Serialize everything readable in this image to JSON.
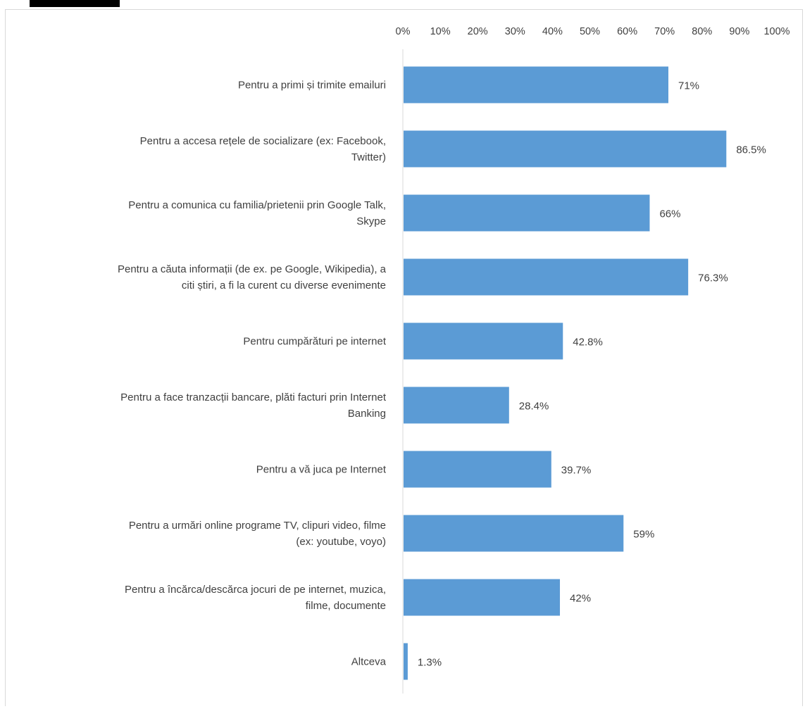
{
  "chart_data": {
    "type": "bar",
    "orientation": "horizontal",
    "categories": [
      [
        "Pentru a primi și trimite emailuri"
      ],
      [
        "Pentru a accesa rețele de socializare (ex: Facebook,",
        "Twitter)"
      ],
      [
        "Pentru a comunica cu familia/prietenii prin Google Talk,",
        "Skype"
      ],
      [
        "Pentru a căuta informații (de ex. pe Google, Wikipedia), a",
        "citi știri, a fi la curent cu diverse evenimente"
      ],
      [
        "Pentru cumpărături pe internet"
      ],
      [
        "Pentru a face tranzacții bancare, plăti facturi prin Internet",
        "Banking"
      ],
      [
        "Pentru a vă juca pe Internet"
      ],
      [
        "Pentru a urmări online programe TV, clipuri video, filme",
        "(ex: youtube, voyo)"
      ],
      [
        "Pentru a încărca/descărca jocuri de pe internet, muzica,",
        "filme, documente"
      ],
      [
        "Altceva"
      ]
    ],
    "values": [
      71,
      86.5,
      66,
      76.3,
      42.8,
      28.4,
      39.7,
      59,
      42,
      1.3
    ],
    "data_labels": [
      "71%",
      "86.5%",
      "66%",
      "76.3%",
      "42.8%",
      "28.4%",
      "39.7%",
      "59%",
      "42%",
      "1.3%"
    ],
    "xlim": [
      0,
      100
    ],
    "x_ticks": [
      "0%",
      "10%",
      "20%",
      "30%",
      "40%",
      "50%",
      "60%",
      "70%",
      "80%",
      "90%",
      "100%"
    ],
    "axis_position": "top",
    "grid": false,
    "legend": "none",
    "bar_color": "#5b9bd5"
  }
}
